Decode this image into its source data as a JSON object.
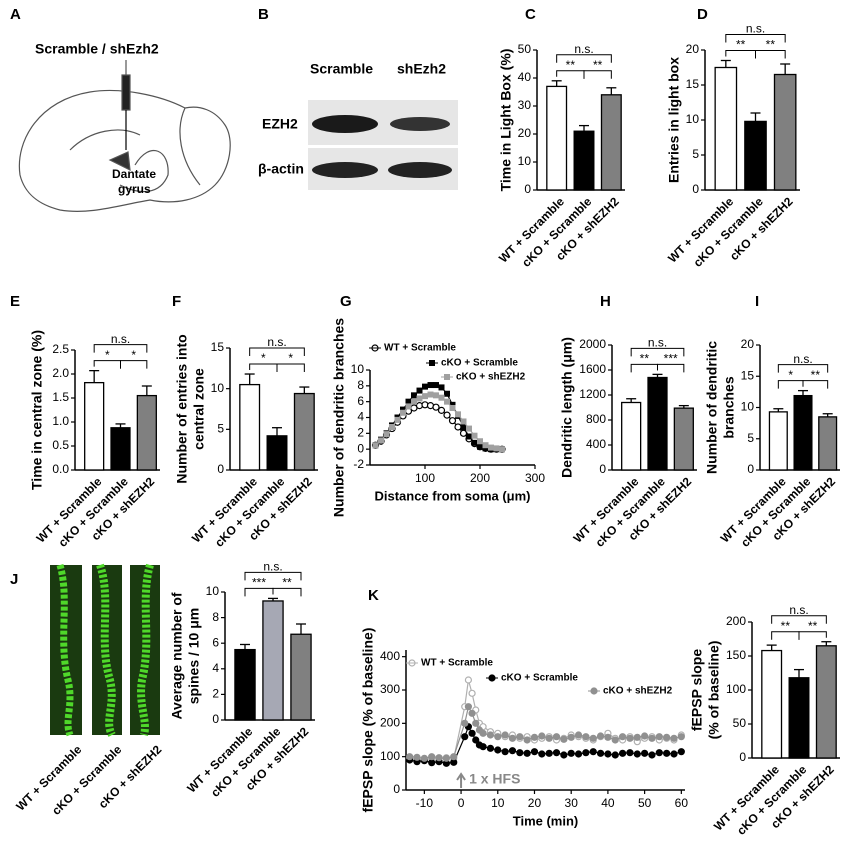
{
  "schematic": {
    "label": "A",
    "title": "Scramble / shEzh2",
    "region": [
      "Dantate",
      "gyrus"
    ]
  },
  "blot": {
    "label": "B",
    "lanes": [
      "Scramble",
      "shEzh2"
    ],
    "proteins": [
      "EZH2",
      "β-actin"
    ]
  },
  "images": {
    "label": "J",
    "captions": [
      "WT + Scramble",
      "cKO + Scramble",
      "cKO + shEZH2"
    ]
  },
  "chart_data": [
    {
      "type": "bar",
      "label": "C",
      "ylabel": [
        "Time in Light Box (%)"
      ],
      "categories": [
        "WT + Scramble",
        "cKO + Scramble",
        "cKO + shEZH2"
      ],
      "values": [
        37,
        21,
        34
      ],
      "errors": [
        2,
        2,
        2.5
      ],
      "colors": [
        "#ffffff",
        "#000000",
        "#808080"
      ],
      "ylim": [
        0,
        50
      ],
      "yticks": [
        0,
        10,
        20,
        30,
        40,
        50
      ],
      "significance": [
        "**",
        "**",
        "n.s."
      ]
    },
    {
      "type": "bar",
      "label": "D",
      "ylabel": [
        "Entries in light box"
      ],
      "categories": [
        "WT + Scramble",
        "cKO + Scramble",
        "cKO + shEZH2"
      ],
      "values": [
        17.5,
        9.8,
        16.5
      ],
      "errors": [
        1,
        1.2,
        1.5
      ],
      "colors": [
        "#ffffff",
        "#000000",
        "#808080"
      ],
      "ylim": [
        0,
        20
      ],
      "yticks": [
        0,
        5,
        10,
        15,
        20
      ],
      "significance": [
        "**",
        "**",
        "n.s."
      ]
    },
    {
      "type": "bar",
      "label": "E",
      "ylabel": [
        "Time in central zone (%)"
      ],
      "categories": [
        "WT + Scramble",
        "cKO + Scramble",
        "cKO + shEZH2"
      ],
      "values": [
        1.82,
        0.88,
        1.55
      ],
      "errors": [
        0.25,
        0.08,
        0.2
      ],
      "colors": [
        "#ffffff",
        "#000000",
        "#808080"
      ],
      "ylim": [
        0,
        2.5
      ],
      "yticks": [
        {
          "value": 0,
          "label": "0.0"
        },
        0.5,
        {
          "value": 1,
          "label": "1.0"
        },
        1.5,
        {
          "value": 2,
          "label": "2.0"
        },
        2.5
      ],
      "significance": [
        "*",
        "*",
        "n.s."
      ]
    },
    {
      "type": "bar",
      "label": "F",
      "ylabel": [
        "Number of entries into",
        "central zone"
      ],
      "categories": [
        "WT + Scramble",
        "cKO + Scramble",
        "cKO + shEZH2"
      ],
      "values": [
        10.5,
        4.2,
        9.4
      ],
      "errors": [
        1.3,
        1,
        0.8
      ],
      "colors": [
        "#ffffff",
        "#000000",
        "#808080"
      ],
      "ylim": [
        0,
        15
      ],
      "yticks": [
        0,
        5,
        10,
        15
      ],
      "significance": [
        "*",
        "*",
        "n.s."
      ]
    },
    {
      "type": "line",
      "label": "G",
      "ylabel": [
        "Number of dendritic branches"
      ],
      "xlabel": "Distance from soma (μm)",
      "x": [
        10,
        20,
        30,
        40,
        50,
        60,
        70,
        80,
        90,
        100,
        110,
        120,
        130,
        140,
        150,
        160,
        170,
        180,
        190,
        200,
        210,
        220,
        230,
        240
      ],
      "series": [
        {
          "name": "WT + Scramble",
          "color": "#000000",
          "marker": "open-circle",
          "values": [
            0.5,
            1,
            1.8,
            2.6,
            3.4,
            4.2,
            4.8,
            5.2,
            5.5,
            5.6,
            5.5,
            5.3,
            4.9,
            4.3,
            3.6,
            2.8,
            2,
            1.3,
            0.7,
            0.3,
            0.1,
            0,
            0,
            0
          ]
        },
        {
          "name": "cKO + Scramble",
          "color": "#000000",
          "marker": "square",
          "values": [
            0.5,
            1.2,
            2,
            3,
            4,
            5,
            6,
            6.8,
            7.4,
            7.9,
            8.1,
            8.1,
            7.8,
            7,
            5.6,
            4.2,
            2.8,
            1.6,
            0.8,
            0.3,
            0.1,
            0,
            0,
            0
          ]
        },
        {
          "name": "cKO + shEZH2",
          "color": "#a0a0a0",
          "marker": "square",
          "values": [
            0.5,
            1.1,
            1.9,
            2.8,
            3.7,
            4.6,
            5.4,
            6,
            6.4,
            6.7,
            6.9,
            6.8,
            6.5,
            6,
            5.2,
            4.4,
            3.5,
            2.6,
            1.7,
            1,
            0.5,
            0.2,
            0.1,
            0
          ]
        }
      ],
      "xlim": [
        0,
        300
      ],
      "xticks": [
        100,
        200,
        300
      ],
      "ylim": [
        -2,
        10
      ],
      "yticks": [
        -2,
        0,
        2,
        4,
        6,
        8,
        10
      ]
    },
    {
      "type": "bar",
      "label": "H",
      "ylabel": [
        "Dendritic length (μm)"
      ],
      "categories": [
        "WT + Scramble",
        "cKO + Scramble",
        "cKO + shEZH2"
      ],
      "values": [
        1080,
        1480,
        990
      ],
      "errors": [
        60,
        50,
        40
      ],
      "colors": [
        "#ffffff",
        "#000000",
        "#808080"
      ],
      "ylim": [
        0,
        2000
      ],
      "yticks": [
        0,
        400,
        800,
        1200,
        1600,
        2000
      ],
      "significance": [
        "**",
        "***",
        "n.s."
      ]
    },
    {
      "type": "bar",
      "label": "I",
      "ylabel": [
        "Number of dendritic",
        "branches"
      ],
      "categories": [
        "WT + Scramble",
        "cKO + Scramble",
        "cKO + shEZH2"
      ],
      "values": [
        9.3,
        11.9,
        8.5
      ],
      "errors": [
        0.5,
        0.8,
        0.5
      ],
      "colors": [
        "#ffffff",
        "#000000",
        "#808080"
      ],
      "ylim": [
        0,
        20
      ],
      "yticks": [
        0,
        5,
        10,
        15,
        20
      ],
      "significance": [
        "*",
        "**",
        "n.s."
      ]
    },
    {
      "type": "bar",
      "ylabel": [
        "Average number of",
        "spines / 10 μm"
      ],
      "categories": [
        "WT + Scramble",
        "cKO + Scramble",
        "cKO + shEZH2"
      ],
      "values": [
        5.5,
        9.3,
        6.7
      ],
      "errors": [
        0.4,
        0.2,
        0.8
      ],
      "colors": [
        "#000000",
        "#a6a8b4",
        "#808080"
      ],
      "ylim": [
        0,
        10
      ],
      "yticks": [
        0,
        2,
        4,
        6,
        8,
        10
      ],
      "significance": [
        "***",
        "**",
        "n.s."
      ]
    },
    {
      "type": "line",
      "label": "K",
      "ylabel": [
        "fEPSP slope (% of baseline)"
      ],
      "xlabel": "Time (min)",
      "annotation": {
        "text": "1 x HFS",
        "x": 0
      },
      "x": [
        -14,
        -12,
        -10,
        -8,
        -6,
        -4,
        -2,
        1,
        2,
        3,
        4,
        5,
        6,
        8,
        10,
        12,
        14,
        16,
        18,
        20,
        22,
        24,
        26,
        28,
        30,
        32,
        34,
        36,
        38,
        40,
        42,
        44,
        46,
        48,
        50,
        52,
        54,
        56,
        58,
        60
      ],
      "series": [
        {
          "name": "WT + Scramble",
          "color": "#b0b0b0",
          "marker": "open-circle",
          "values": [
            95,
            92,
            90,
            95,
            93,
            97,
            95,
            250,
            330,
            290,
            240,
            200,
            190,
            175,
            170,
            160,
            165,
            155,
            160,
            150,
            155,
            160,
            150,
            155,
            165,
            160,
            155,
            150,
            160,
            170,
            155,
            150,
            160,
            145,
            155,
            160,
            150,
            155,
            150,
            165
          ]
        },
        {
          "name": "cKO + Scramble",
          "color": "#000000",
          "marker": "circle",
          "values": [
            90,
            85,
            88,
            82,
            85,
            80,
            83,
            160,
            190,
            170,
            150,
            135,
            130,
            125,
            120,
            115,
            118,
            112,
            110,
            115,
            108,
            110,
            112,
            105,
            110,
            108,
            112,
            115,
            110,
            108,
            105,
            110,
            112,
            108,
            110,
            105,
            112,
            110,
            108,
            115
          ]
        },
        {
          "name": "cKO + shEZH2",
          "color": "#909090",
          "marker": "circle",
          "values": [
            100,
            98,
            95,
            100,
            97,
            95,
            100,
            200,
            250,
            230,
            200,
            180,
            170,
            165,
            160,
            165,
            155,
            160,
            150,
            158,
            162,
            155,
            160,
            152,
            158,
            165,
            160,
            155,
            162,
            158,
            150,
            160,
            155,
            158,
            162,
            155,
            160,
            158,
            155,
            160
          ]
        }
      ],
      "xlim": [
        -15,
        61
      ],
      "xticks": [
        -10,
        0,
        10,
        20,
        30,
        40,
        50,
        60
      ],
      "ylim": [
        0,
        420
      ],
      "yticks": [
        0,
        100,
        200,
        300,
        400
      ]
    },
    {
      "type": "bar",
      "ylabel": [
        "fEPSP slope",
        "(% of baseline)"
      ],
      "categories": [
        "WT + Scramble",
        "cKO + Scramble",
        "cKO + shEZH2"
      ],
      "values": [
        158,
        118,
        165
      ],
      "errors": [
        8,
        12,
        6
      ],
      "colors": [
        "#ffffff",
        "#000000",
        "#808080"
      ],
      "ylim": [
        0,
        200
      ],
      "yticks": [
        0,
        50,
        100,
        150,
        200
      ],
      "significance": [
        "**",
        "**",
        "n.s."
      ]
    }
  ]
}
